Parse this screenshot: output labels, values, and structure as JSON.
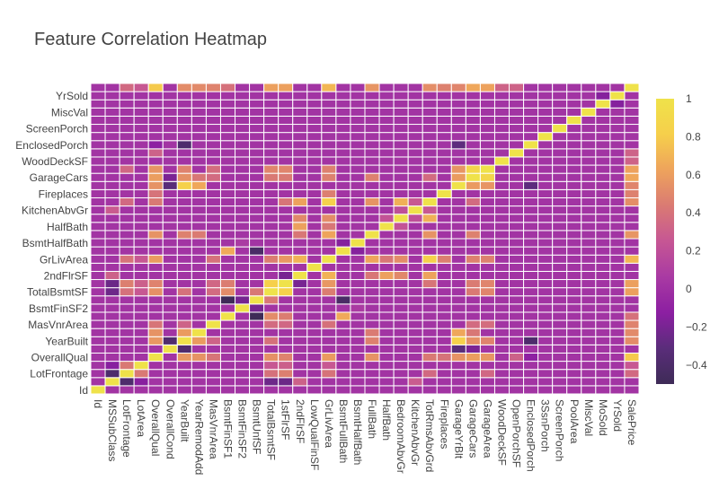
{
  "chart_data": {
    "type": "heatmap",
    "title": "Feature Correlation Heatmap",
    "variables": [
      "Id",
      "MSSubClass",
      "LotFrontage",
      "LotArea",
      "OverallQual",
      "OverallCond",
      "YearBuilt",
      "YearRemodAdd",
      "MasVnrArea",
      "BsmtFinSF1",
      "BsmtFinSF2",
      "BsmtUnfSF",
      "TotalBsmtSF",
      "1stFlrSF",
      "2ndFlrSF",
      "LowQualFinSF",
      "GrLivArea",
      "BsmtFullBath",
      "BsmtHalfBath",
      "FullBath",
      "HalfBath",
      "BedroomAbvGr",
      "KitchenAbvGr",
      "TotRmsAbvGrd",
      "Fireplaces",
      "GarageYrBlt",
      "GarageCars",
      "GarageArea",
      "WoodDeckSF",
      "OpenPorchSF",
      "EnclosedPorch",
      "3SsnPorch",
      "ScreenPorch",
      "PoolArea",
      "MiscVal",
      "MoSold",
      "YrSold",
      "SalePrice"
    ],
    "x_ticks_shown": [
      "Id",
      "MSSubClass",
      "LotFrontage",
      "LotArea",
      "OverallQual",
      "OverallCond",
      "YearBuilt",
      "YearRemodAdd",
      "MasVnrArea",
      "BsmtFinSF1",
      "BsmtFinSF2",
      "BsmtUnfSF",
      "TotalBsmtSF",
      "1stFlrSF",
      "2ndFlrSF",
      "LowQualFinSF",
      "GrLivArea",
      "BsmtFullBath",
      "BsmtHalfBath",
      "FullBath",
      "HalfBath",
      "BedroomAbvGr",
      "KitchenAbvGr",
      "TotRmsAbvGrd",
      "Fireplaces",
      "GarageYrBlt",
      "GarageCars",
      "GarageArea",
      "WoodDeckSF",
      "OpenPorchSF",
      "EnclosedPorch",
      "3SsnPorch",
      "ScreenPorch",
      "PoolArea",
      "MiscVal",
      "MoSold",
      "YrSold",
      "SalePrice"
    ],
    "y_ticks_shown": [
      "Id",
      "LotFrontage",
      "OverallQual",
      "YearBuilt",
      "MasVnrArea",
      "BsmtFinSF2",
      "TotalBsmtSF",
      "2ndFlrSF",
      "GrLivArea",
      "BsmtHalfBath",
      "HalfBath",
      "KitchenAbvGr",
      "Fireplaces",
      "GarageCars",
      "WoodDeckSF",
      "EnclosedPorch",
      "ScreenPorch",
      "MiscVal",
      "YrSold"
    ],
    "colorbar": {
      "range": [
        -0.5,
        1
      ],
      "ticks": [
        -0.4,
        -0.2,
        0,
        0.2,
        0.4,
        0.6,
        0.8,
        1
      ],
      "tick_labels": [
        "−0.4",
        "−0.2",
        "0",
        "0.2",
        "0.4",
        "0.6",
        "0.8",
        "1"
      ]
    },
    "colorscale": [
      "#3e2b57",
      "#5a2d7a",
      "#8c1fa2",
      "#a93aa3",
      "#c65694",
      "#da7a73",
      "#eea35c",
      "#f6cf4b",
      "#efe24a"
    ],
    "zmin": -0.5,
    "zmax": 1,
    "strong_correlations": [
      {
        "a": "MSSubClass",
        "b": "LotFrontage",
        "r": -0.39
      },
      {
        "a": "MSSubClass",
        "b": "LotArea",
        "r": -0.14
      },
      {
        "a": "MSSubClass",
        "b": "TotalBsmtSF",
        "r": -0.24
      },
      {
        "a": "MSSubClass",
        "b": "1stFlrSF",
        "r": -0.25
      },
      {
        "a": "MSSubClass",
        "b": "2ndFlrSF",
        "r": 0.31
      },
      {
        "a": "MSSubClass",
        "b": "KitchenAbvGr",
        "r": 0.28
      },
      {
        "a": "LotFrontage",
        "b": "LotArea",
        "r": 0.43
      },
      {
        "a": "LotFrontage",
        "b": "TotalBsmtSF",
        "r": 0.39
      },
      {
        "a": "LotFrontage",
        "b": "1stFlrSF",
        "r": 0.46
      },
      {
        "a": "LotFrontage",
        "b": "GrLivArea",
        "r": 0.4
      },
      {
        "a": "LotFrontage",
        "b": "TotRmsAbvGrd",
        "r": 0.35
      },
      {
        "a": "LotFrontage",
        "b": "GarageArea",
        "r": 0.34
      },
      {
        "a": "LotFrontage",
        "b": "SalePrice",
        "r": 0.35
      },
      {
        "a": "LotArea",
        "b": "TotalBsmtSF",
        "r": 0.26
      },
      {
        "a": "LotArea",
        "b": "1stFlrSF",
        "r": 0.3
      },
      {
        "a": "LotArea",
        "b": "GrLivArea",
        "r": 0.26
      },
      {
        "a": "LotArea",
        "b": "SalePrice",
        "r": 0.26
      },
      {
        "a": "OverallQual",
        "b": "YearBuilt",
        "r": 0.57
      },
      {
        "a": "OverallQual",
        "b": "YearRemodAdd",
        "r": 0.55
      },
      {
        "a": "OverallQual",
        "b": "MasVnrArea",
        "r": 0.41
      },
      {
        "a": "OverallQual",
        "b": "TotalBsmtSF",
        "r": 0.54
      },
      {
        "a": "OverallQual",
        "b": "1stFlrSF",
        "r": 0.48
      },
      {
        "a": "OverallQual",
        "b": "GrLivArea",
        "r": 0.59
      },
      {
        "a": "OverallQual",
        "b": "FullBath",
        "r": 0.55
      },
      {
        "a": "OverallQual",
        "b": "TotRmsAbvGrd",
        "r": 0.43
      },
      {
        "a": "OverallQual",
        "b": "Fireplaces",
        "r": 0.4
      },
      {
        "a": "OverallQual",
        "b": "GarageYrBlt",
        "r": 0.55
      },
      {
        "a": "OverallQual",
        "b": "GarageCars",
        "r": 0.6
      },
      {
        "a": "OverallQual",
        "b": "GarageArea",
        "r": 0.56
      },
      {
        "a": "OverallQual",
        "b": "OpenPorchSF",
        "r": 0.31
      },
      {
        "a": "OverallQual",
        "b": "SalePrice",
        "r": 0.79
      },
      {
        "a": "OverallCond",
        "b": "YearBuilt",
        "r": -0.38
      },
      {
        "a": "OverallCond",
        "b": "GarageYrBlt",
        "r": -0.32
      },
      {
        "a": "OverallCond",
        "b": "GarageCars",
        "r": -0.19
      },
      {
        "a": "YearBuilt",
        "b": "YearRemodAdd",
        "r": 0.59
      },
      {
        "a": "YearBuilt",
        "b": "MasVnrArea",
        "r": 0.32
      },
      {
        "a": "YearBuilt",
        "b": "TotalBsmtSF",
        "r": 0.39
      },
      {
        "a": "YearBuilt",
        "b": "FullBath",
        "r": 0.47
      },
      {
        "a": "YearBuilt",
        "b": "GarageYrBlt",
        "r": 0.83
      },
      {
        "a": "YearBuilt",
        "b": "GarageCars",
        "r": 0.54
      },
      {
        "a": "YearBuilt",
        "b": "GarageArea",
        "r": 0.48
      },
      {
        "a": "YearBuilt",
        "b": "EnclosedPorch",
        "r": -0.39
      },
      {
        "a": "YearBuilt",
        "b": "SalePrice",
        "r": 0.52
      },
      {
        "a": "YearRemodAdd",
        "b": "GarageYrBlt",
        "r": 0.64
      },
      {
        "a": "YearRemodAdd",
        "b": "FullBath",
        "r": 0.44
      },
      {
        "a": "YearRemodAdd",
        "b": "GarageCars",
        "r": 0.42
      },
      {
        "a": "YearRemodAdd",
        "b": "SalePrice",
        "r": 0.51
      },
      {
        "a": "MasVnrArea",
        "b": "TotalBsmtSF",
        "r": 0.36
      },
      {
        "a": "MasVnrArea",
        "b": "1stFlrSF",
        "r": 0.34
      },
      {
        "a": "MasVnrArea",
        "b": "GrLivArea",
        "r": 0.39
      },
      {
        "a": "MasVnrArea",
        "b": "GarageCars",
        "r": 0.36
      },
      {
        "a": "MasVnrArea",
        "b": "GarageArea",
        "r": 0.37
      },
      {
        "a": "MasVnrArea",
        "b": "SalePrice",
        "r": 0.48
      },
      {
        "a": "BsmtFinSF1",
        "b": "BsmtUnfSF",
        "r": -0.5
      },
      {
        "a": "BsmtFinSF1",
        "b": "TotalBsmtSF",
        "r": 0.52
      },
      {
        "a": "BsmtFinSF1",
        "b": "1stFlrSF",
        "r": 0.45
      },
      {
        "a": "BsmtFinSF1",
        "b": "BsmtFullBath",
        "r": 0.65
      },
      {
        "a": "BsmtFinSF1",
        "b": "SalePrice",
        "r": 0.39
      },
      {
        "a": "BsmtFinSF2",
        "b": "BsmtUnfSF",
        "r": -0.21
      },
      {
        "a": "BsmtFinSF2",
        "b": "BsmtHalfBath",
        "r": 0.07
      },
      {
        "a": "BsmtUnfSF",
        "b": "TotalBsmtSF",
        "r": 0.42
      },
      {
        "a": "BsmtUnfSF",
        "b": "BsmtFullBath",
        "r": -0.42
      },
      {
        "a": "TotalBsmtSF",
        "b": "1stFlrSF",
        "r": 0.82
      },
      {
        "a": "TotalBsmtSF",
        "b": "GrLivArea",
        "r": 0.45
      },
      {
        "a": "TotalBsmtSF",
        "b": "GarageCars",
        "r": 0.43
      },
      {
        "a": "TotalBsmtSF",
        "b": "GarageArea",
        "r": 0.49
      },
      {
        "a": "TotalBsmtSF",
        "b": "SalePrice",
        "r": 0.61
      },
      {
        "a": "1stFlrSF",
        "b": "2ndFlrSF",
        "r": -0.2
      },
      {
        "a": "1stFlrSF",
        "b": "GrLivArea",
        "r": 0.57
      },
      {
        "a": "1stFlrSF",
        "b": "TotRmsAbvGrd",
        "r": 0.41
      },
      {
        "a": "1stFlrSF",
        "b": "GarageCars",
        "r": 0.44
      },
      {
        "a": "1stFlrSF",
        "b": "GarageArea",
        "r": 0.49
      },
      {
        "a": "1stFlrSF",
        "b": "SalePrice",
        "r": 0.61
      },
      {
        "a": "2ndFlrSF",
        "b": "GrLivArea",
        "r": 0.69
      },
      {
        "a": "2ndFlrSF",
        "b": "HalfBath",
        "r": 0.61
      },
      {
        "a": "2ndFlrSF",
        "b": "BedroomAbvGr",
        "r": 0.5
      },
      {
        "a": "2ndFlrSF",
        "b": "TotRmsAbvGrd",
        "r": 0.62
      },
      {
        "a": "2ndFlrSF",
        "b": "FullBath",
        "r": 0.42
      },
      {
        "a": "GrLivArea",
        "b": "FullBath",
        "r": 0.63
      },
      {
        "a": "GrLivArea",
        "b": "HalfBath",
        "r": 0.42
      },
      {
        "a": "GrLivArea",
        "b": "BedroomAbvGr",
        "r": 0.52
      },
      {
        "a": "GrLivArea",
        "b": "TotRmsAbvGrd",
        "r": 0.83
      },
      {
        "a": "GrLivArea",
        "b": "Fireplaces",
        "r": 0.46
      },
      {
        "a": "GrLivArea",
        "b": "GarageCars",
        "r": 0.47
      },
      {
        "a": "GrLivArea",
        "b": "GarageArea",
        "r": 0.47
      },
      {
        "a": "GrLivArea",
        "b": "SalePrice",
        "r": 0.71
      },
      {
        "a": "BsmtFullBath",
        "b": "BsmtHalfBath",
        "r": -0.15
      },
      {
        "a": "FullBath",
        "b": "TotRmsAbvGrd",
        "r": 0.55
      },
      {
        "a": "FullBath",
        "b": "GarageCars",
        "r": 0.47
      },
      {
        "a": "FullBath",
        "b": "SalePrice",
        "r": 0.56
      },
      {
        "a": "HalfBath",
        "b": "BedroomAbvGr",
        "r": 0.23
      },
      {
        "a": "BedroomAbvGr",
        "b": "TotRmsAbvGrd",
        "r": 0.68
      },
      {
        "a": "BedroomAbvGr",
        "b": "KitchenAbvGr",
        "r": 0.2
      },
      {
        "a": "KitchenAbvGr",
        "b": "TotRmsAbvGrd",
        "r": 0.26
      },
      {
        "a": "TotRmsAbvGrd",
        "b": "SalePrice",
        "r": 0.53
      },
      {
        "a": "TotRmsAbvGrd",
        "b": "GarageCars",
        "r": 0.36
      },
      {
        "a": "Fireplaces",
        "b": "SalePrice",
        "r": 0.47
      },
      {
        "a": "GarageYrBlt",
        "b": "GarageCars",
        "r": 0.59
      },
      {
        "a": "GarageYrBlt",
        "b": "GarageArea",
        "r": 0.56
      },
      {
        "a": "GarageYrBlt",
        "b": "EnclosedPorch",
        "r": -0.3
      },
      {
        "a": "GarageYrBlt",
        "b": "SalePrice",
        "r": 0.49
      },
      {
        "a": "GarageCars",
        "b": "GarageArea",
        "r": 0.88
      },
      {
        "a": "GarageCars",
        "b": "SalePrice",
        "r": 0.64
      },
      {
        "a": "GarageArea",
        "b": "SalePrice",
        "r": 0.62
      },
      {
        "a": "WoodDeckSF",
        "b": "SalePrice",
        "r": 0.32
      },
      {
        "a": "OpenPorchSF",
        "b": "SalePrice",
        "r": 0.32
      },
      {
        "a": "EnclosedPorch",
        "b": "OverallQual",
        "r": -0.11
      },
      {
        "a": "MoSold",
        "b": "YrSold",
        "r": -0.15
      }
    ]
  }
}
